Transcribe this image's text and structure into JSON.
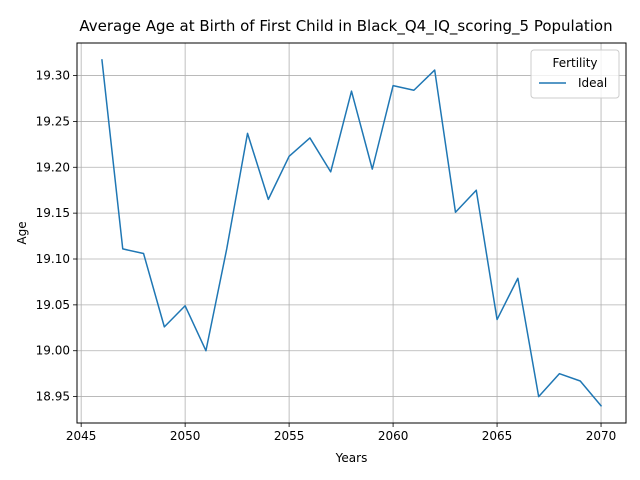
{
  "chart_data": {
    "type": "line",
    "title": "Average Age at Birth of First Child in Black_Q4_IQ_scoring_5 Population",
    "xlabel": "Years",
    "ylabel": "Age",
    "xlim": [
      2044.8,
      2071.2
    ],
    "ylim": [
      18.9212,
      19.3355
    ],
    "xticks": [
      2045,
      2050,
      2055,
      2060,
      2065,
      2070
    ],
    "yticks": [
      18.95,
      19.0,
      19.05,
      19.1,
      19.15,
      19.2,
      19.25,
      19.3
    ],
    "ytick_labels": [
      "18.95",
      "19.00",
      "19.05",
      "19.10",
      "19.15",
      "19.20",
      "19.25",
      "19.30"
    ],
    "grid": true,
    "legend": {
      "title": "Fertility",
      "position": "top-right"
    },
    "series": [
      {
        "name": "Ideal",
        "color": "#1f77b4",
        "x": [
          2046,
          2047,
          2048,
          2049,
          2050,
          2051,
          2052,
          2053,
          2054,
          2055,
          2056,
          2057,
          2058,
          2059,
          2060,
          2061,
          2062,
          2063,
          2064,
          2065,
          2066,
          2067,
          2068,
          2069,
          2070
        ],
        "y": [
          19.317,
          19.111,
          19.106,
          19.026,
          19.049,
          19.0,
          19.111,
          19.237,
          19.165,
          19.212,
          19.232,
          19.195,
          19.283,
          19.198,
          19.289,
          19.284,
          19.306,
          19.151,
          19.175,
          19.034,
          19.079,
          18.95,
          18.975,
          18.967,
          18.94
        ]
      }
    ]
  }
}
